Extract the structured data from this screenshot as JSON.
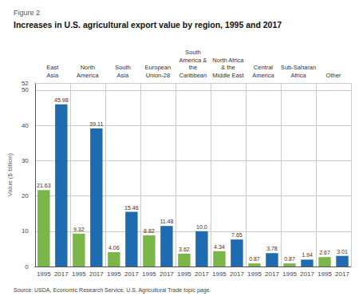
{
  "chart_data": {
    "type": "bar",
    "title": "Increases in U.S. agricultural export value by region, 1995 and 2017",
    "annotations": [
      "Figure 2",
      "Source: USDA, Economic Research Service, U.S. Agricultural Trade topic page."
    ],
    "ylabel": "Value ($ billion)",
    "categories": [
      "East\nAsia",
      "North\nAmerica",
      "South\nAsia",
      "European\nUnion-28",
      "South\nAmerica &\nthe\nCaribbean",
      "North Africa\n& the\nMiddle East",
      "Central\nAmerica",
      "Sub-Saharan\nAfrica",
      "Other"
    ],
    "series": [
      {
        "name": "1995",
        "color": "#7ab648",
        "values": [
          21.63,
          9.32,
          4.06,
          8.82,
          3.62,
          4.34,
          0.87,
          0.87,
          2.67
        ],
        "value_labels": [
          "21.63",
          "9.32",
          "4.06",
          "8.82",
          "3.62",
          "4.34",
          "0.87",
          "0.87",
          "2.67"
        ]
      },
      {
        "name": "2017",
        "color": "#1f6bb0",
        "values": [
          45.98,
          39.11,
          15.46,
          11.48,
          10.0,
          7.65,
          3.78,
          1.94,
          3.01
        ],
        "value_labels": [
          "45.98",
          "39.11",
          "15.46",
          "11.48",
          "10.0",
          "7.65",
          "3.78",
          "1.94",
          "3.01"
        ]
      }
    ],
    "ylim": [
      0,
      52
    ],
    "yticks": [
      0,
      10,
      20,
      30,
      40,
      50
    ],
    "grid": true,
    "data_labels": true
  }
}
